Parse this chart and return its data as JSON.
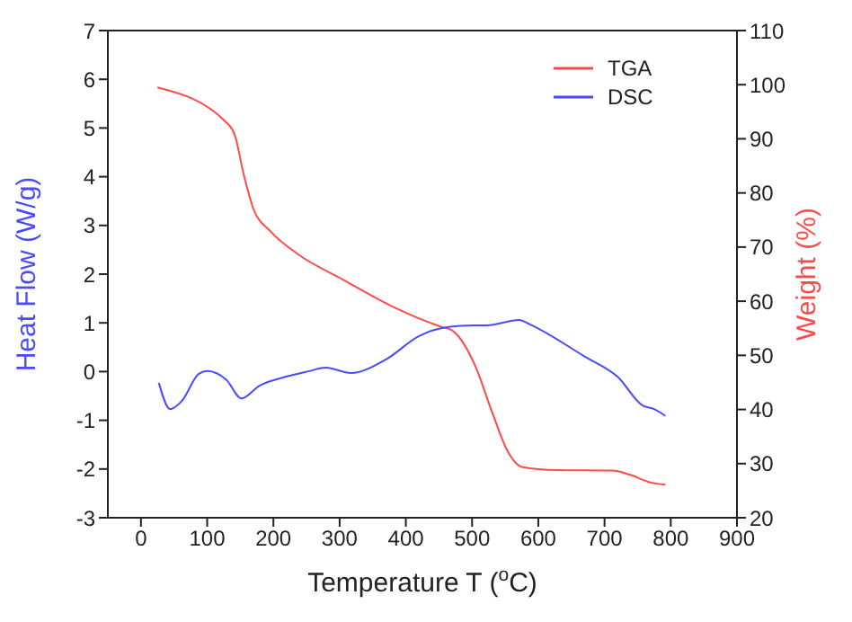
{
  "chart_data": {
    "type": "line",
    "xlabel": "Temperature T ($^{o}$C)",
    "ylabel": "Heat Flow (W/g)",
    "y2label": "Weight (%)",
    "xlim": [
      -50,
      900
    ],
    "xticks": [
      0,
      100,
      200,
      300,
      400,
      500,
      600,
      700,
      800,
      900
    ],
    "ylim": [
      -3,
      7
    ],
    "yticks": [
      -3,
      -2,
      -1,
      0,
      1,
      2,
      3,
      4,
      5,
      6,
      7
    ],
    "y2lim": [
      20,
      110
    ],
    "y2ticks": [
      20,
      30,
      40,
      50,
      60,
      70,
      80,
      90,
      100,
      110
    ],
    "legend": "top right",
    "marker": "none",
    "series": [
      {
        "name": "TGA",
        "color": "#ff4a4a",
        "axis": "y2",
        "x": [
          25,
          130,
          142,
          155,
          170,
          195,
          237,
          305,
          380,
          455,
          470,
          505,
          530,
          555,
          575,
          630,
          712,
          737,
          770,
          792
        ],
        "values": [
          99.5,
          92.9,
          90.6,
          83.5,
          77,
          73,
          68.7,
          64,
          59,
          55.2,
          54.6,
          48,
          39.6,
          32,
          29.4,
          28.8,
          28.7,
          28,
          26.5,
          26.1
        ]
      },
      {
        "name": "DSC",
        "color": "#4a4aff",
        "x": [
          27,
          44,
          62,
          87,
          100,
          129,
          152,
          179,
          212,
          254,
          279,
          317,
          370,
          420,
          462,
          504,
          522,
          571,
          587,
          670,
          720,
          758,
          775,
          792
        ],
        "values": [
          -0.23,
          -0.77,
          -0.6,
          -0.05,
          0.01,
          -0.17,
          -0.55,
          -0.29,
          -0.13,
          0.01,
          0.08,
          -0.03,
          0.25,
          0.73,
          0.91,
          0.95,
          0.95,
          1.06,
          0.97,
          0.31,
          -0.11,
          -0.7,
          -0.77,
          -0.91
        ]
      }
    ]
  }
}
